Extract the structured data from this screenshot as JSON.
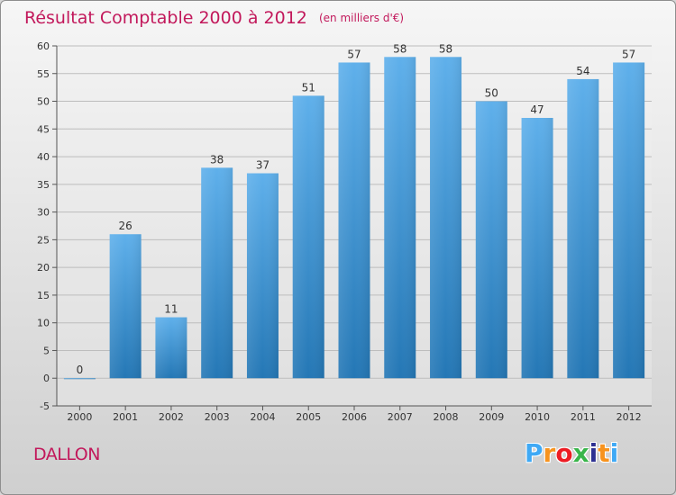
{
  "header": {
    "title": "Résultat Comptable 2000 à 2012",
    "subtitle": "(en milliers d'€)"
  },
  "footer": {
    "commune": "DALLON",
    "logo_text": "Proxiti",
    "logo_colors": [
      "#3fa9f5",
      "#f7931e",
      "#ed1c24",
      "#39b54a",
      "#2e3192",
      "#f7931e",
      "#3fa9f5"
    ]
  },
  "colors": {
    "title": "#c2185b",
    "bar_top": "#5fb0eb",
    "bar_bottom": "#2477b5",
    "grid": "#bdbdbd",
    "axis": "#555555",
    "plot_background": "#f0f0f0"
  },
  "chart_data": {
    "type": "bar",
    "title": "Résultat Comptable 2000 à 2012",
    "subtitle": "(en milliers d'€)",
    "xlabel": "",
    "ylabel": "",
    "categories": [
      "2000",
      "2001",
      "2002",
      "2003",
      "2004",
      "2005",
      "2006",
      "2007",
      "2008",
      "2009",
      "2010",
      "2011",
      "2012"
    ],
    "values": [
      0,
      26,
      11,
      38,
      37,
      51,
      57,
      58,
      58,
      50,
      47,
      54,
      57
    ],
    "data_labels": [
      "0",
      "26",
      "11",
      "38",
      "37",
      "51",
      "57",
      "58",
      "58",
      "50",
      "47",
      "54",
      "57"
    ],
    "ylim": [
      -5,
      60
    ],
    "yticks": [
      -5,
      0,
      5,
      10,
      15,
      20,
      25,
      30,
      35,
      40,
      45,
      50,
      55,
      60
    ],
    "grid": true,
    "legend": "none"
  }
}
